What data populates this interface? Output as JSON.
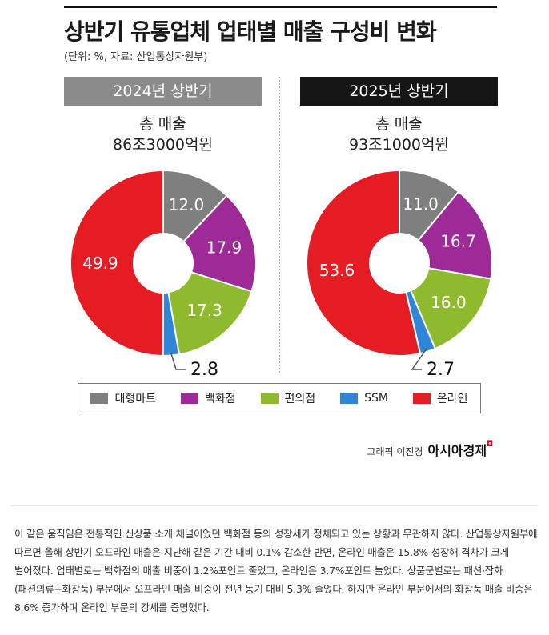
{
  "title": "상반기 유통업체 업태별 매출 구성비 변화",
  "subtitle": "(단위: %, 자료: 산업통상자원부)",
  "legend": [
    {
      "label": "대형마트",
      "color": "#7f7f7f"
    },
    {
      "label": "백화점",
      "color": "#9d2a97"
    },
    {
      "label": "편의점",
      "color": "#8fba2e"
    },
    {
      "label": "SSM",
      "color": "#2f86d6"
    },
    {
      "label": "온라인",
      "color": "#e51c24"
    }
  ],
  "chart_data": [
    {
      "type": "pie",
      "period": "2024년 상반기",
      "total_label": "총 매출",
      "total_value": "86조3000억원",
      "categories": [
        "대형마트",
        "백화점",
        "편의점",
        "SSM",
        "온라인"
      ],
      "values": [
        12.0,
        17.9,
        17.3,
        2.8,
        49.9
      ],
      "labels": [
        "12.0",
        "17.9",
        "17.3",
        "2.8",
        "49.9"
      ]
    },
    {
      "type": "pie",
      "period": "2025년 상반기",
      "total_label": "총 매출",
      "total_value": "93조1000억원",
      "categories": [
        "대형마트",
        "백화점",
        "편의점",
        "SSM",
        "온라인"
      ],
      "values": [
        11.0,
        16.7,
        16.0,
        2.7,
        53.6
      ],
      "labels": [
        "11.0",
        "16.7",
        "16.0",
        "2.7",
        "53.6"
      ]
    }
  ],
  "credit": {
    "text": "그래픽 이진경",
    "brand": "아시아경제"
  },
  "article": "이 같은 움직임은 전통적인 신상품 소개 채널이었던 백화점 등의 성장세가 정체되고 있는 상황과 무관하지 않다. 산업통상자원부에 따르면 올해 상반기 오프라인 매출은 지난해 같은 기간 대비 0.1% 감소한 반면, 온라인 매출은 15.8% 성장해 격차가 크게 벌어졌다. 업태별로는 백화점의 매출 비중이 1.2%포인트 줄었고, 온라인은 3.7%포인트 늘었다. 상품군별로는 패션·잡화(패션의류+화장품) 부문에서 오프라인 매출 비중이 전년 동기 대비 5.3% 줄었다. 하지만 온라인 부문에서의 화장품 매출 비중은 8.6% 증가하며 온라인 부문의 강세를 증명했다."
}
